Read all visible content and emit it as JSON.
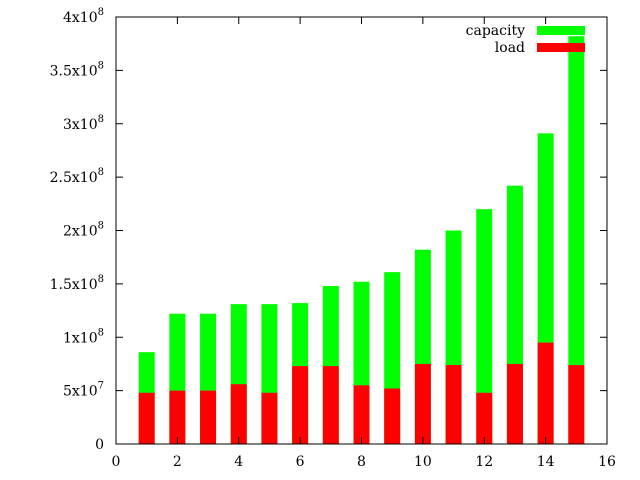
{
  "chart_data": {
    "type": "bar",
    "stacked": false,
    "x": [
      1,
      2,
      3,
      4,
      5,
      6,
      7,
      8,
      9,
      10,
      11,
      12,
      13,
      14,
      15
    ],
    "series": [
      {
        "name": "capacity",
        "color": "#00ff00",
        "values": [
          86000000,
          122000000,
          122000000,
          131000000,
          131000000,
          132000000,
          148000000,
          152000000,
          161000000,
          182000000,
          200000000,
          220000000,
          242000000,
          291000000,
          382000000
        ]
      },
      {
        "name": "load",
        "color": "#ff0000",
        "values": [
          48000000,
          50000000,
          50000000,
          56000000,
          48000000,
          73000000,
          73000000,
          55000000,
          52000000,
          75000000,
          74000000,
          48000000,
          75000000,
          95000000,
          74000000
        ]
      }
    ],
    "xlim": [
      0,
      16
    ],
    "ylim": [
      0,
      400000000
    ],
    "xticks": [
      0,
      2,
      4,
      6,
      8,
      10,
      12,
      14,
      16
    ],
    "yticks": [
      {
        "value": 0,
        "mantissa": "0",
        "exponent": ""
      },
      {
        "value": 50000000,
        "mantissa": "5x10",
        "exponent": "7"
      },
      {
        "value": 100000000,
        "mantissa": "1x10",
        "exponent": "8"
      },
      {
        "value": 150000000,
        "mantissa": "1.5x10",
        "exponent": "8"
      },
      {
        "value": 200000000,
        "mantissa": "2x10",
        "exponent": "8"
      },
      {
        "value": 250000000,
        "mantissa": "2.5x10",
        "exponent": "8"
      },
      {
        "value": 300000000,
        "mantissa": "3x10",
        "exponent": "8"
      },
      {
        "value": 350000000,
        "mantissa": "3.5x10",
        "exponent": "8"
      },
      {
        "value": 400000000,
        "mantissa": "4x10",
        "exponent": "8"
      }
    ],
    "title": "",
    "xlabel": "",
    "ylabel": "",
    "grid": false,
    "legend_position": "top-right"
  }
}
